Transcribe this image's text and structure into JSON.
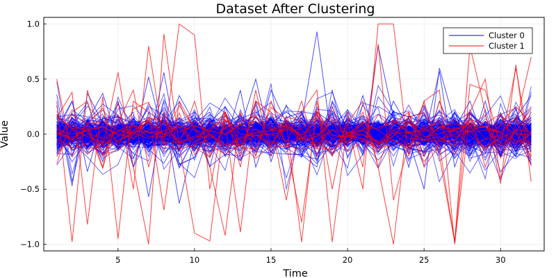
{
  "chart_data": {
    "type": "line",
    "title": "Dataset After Clustering",
    "xlabel": "Time",
    "ylabel": "Value",
    "xlim": [
      0.15,
      32.85
    ],
    "ylim": [
      -1.06,
      1.06
    ],
    "x_ticks": [
      5,
      10,
      15,
      20,
      25,
      30
    ],
    "y_ticks": [
      -1.0,
      -0.5,
      0.0,
      0.5,
      1.0
    ],
    "y_tick_labels": [
      "−1.0",
      "−0.5",
      "0.0",
      "0.5",
      "1.0"
    ],
    "grid": true,
    "legend_position": "top-right",
    "x": [
      1,
      2,
      3,
      4,
      5,
      6,
      7,
      8,
      9,
      10,
      11,
      12,
      13,
      14,
      15,
      16,
      17,
      18,
      19,
      20,
      21,
      22,
      23,
      24,
      25,
      26,
      27,
      28,
      29,
      30,
      31,
      32
    ],
    "series": [
      {
        "name": "Cluster 0",
        "color": "#0000ff",
        "lines": [
          [
            0.36,
            -0.43,
            0.12,
            0.37,
            -0.08,
            0.15,
            -0.1,
            0.56,
            -0.2,
            0.1,
            -0.05,
            0.12,
            0.05,
            0.5,
            -0.1,
            0.05,
            0.1,
            0.93,
            -0.1,
            0.2,
            0.05,
            -0.1,
            0.3,
            0.05,
            -0.05,
            0.57,
            -0.3,
            0.1,
            0.05,
            -0.2,
            0.1,
            -0.27
          ],
          [
            0.26,
            -0.47,
            0.37,
            0.1,
            0.05,
            0.2,
            -0.57,
            0.2,
            -0.63,
            -0.05,
            0.1,
            0.25,
            0.05,
            -0.1,
            0.4,
            0.1,
            -0.05,
            0.2,
            0.1,
            0.05,
            -0.15,
            0.8,
            0.15,
            -0.05,
            -0.5,
            0.6,
            0.1,
            0.2,
            0.05,
            0.1,
            0.15,
            0.35
          ],
          [
            0.05,
            0.3,
            -0.34,
            0.15,
            0.1,
            -0.1,
            0.52,
            -0.05,
            0.35,
            0.1,
            0.2,
            -0.1,
            0.4,
            -0.3,
            0.1,
            0.2,
            0.1,
            -0.25,
            0.3,
            0.05,
            -0.1,
            0.1,
            0.05,
            0.15,
            -0.2,
            0.1,
            0.05,
            0.3,
            -0.1,
            0.05,
            -0.2,
            0.1
          ],
          [
            -0.1,
            0.15,
            0.05,
            -0.25,
            0.3,
            -0.3,
            0.2,
            0.1,
            -0.15,
            0.2,
            -0.3,
            0.25,
            -0.1,
            0.3,
            -0.25,
            0.15,
            0.2,
            -0.2,
            0.25,
            -0.1,
            0.35,
            -0.1,
            0.2,
            -0.3,
            0.25,
            -0.1,
            0.2,
            -0.15,
            0.3,
            -0.2,
            0.15,
            0.05
          ]
        ]
      },
      {
        "name": "Cluster 1",
        "color": "#ff0000",
        "lines": [
          [
            0.5,
            -0.2,
            0.1,
            -0.3,
            0.3,
            -0.5,
            0.8,
            -0.1,
            1.0,
            0.9,
            -0.5,
            0.2,
            -0.3,
            0.4,
            -0.2,
            0.1,
            -0.98,
            0.3,
            -0.5,
            0.2,
            -0.3,
            0.82,
            -0.6,
            -0.1,
            0.3,
            0.4,
            -1.0,
            0.2,
            0.5,
            -0.4,
            0.1,
            0.7
          ],
          [
            0.3,
            -0.98,
            0.4,
            -0.1,
            0.56,
            -0.3,
            -1.0,
            0.91,
            -0.1,
            -0.9,
            -0.97,
            0.2,
            -0.2,
            0.3,
            0.1,
            -0.6,
            0.2,
            0.4,
            -0.98,
            0.1,
            -0.5,
            1.0,
            1.0,
            -0.2,
            0.3,
            -0.2,
            -0.98,
            0.8,
            0.2,
            -0.45,
            0.63,
            -0.43
          ],
          [
            0.15,
            0.38,
            -0.82,
            0.34,
            -0.95,
            0.3,
            0.2,
            -0.69,
            0.3,
            0.05,
            -0.3,
            -0.92,
            0.2,
            -0.2,
            0.3,
            -0.1,
            -0.8,
            0.2,
            -0.2,
            0.1,
            0.3,
            -0.3,
            -1.0,
            0.2,
            -0.3,
            -0.1,
            -0.98,
            0.45,
            0.4,
            -0.1,
            0.6,
            -0.2
          ],
          [
            -0.1,
            0.2,
            0.3,
            -0.2,
            0.1,
            0.4,
            -0.3,
            0.2,
            -0.1,
            0.3,
            -0.2,
            0.1,
            -0.89,
            0.3,
            0.2,
            -0.1,
            0.3,
            -0.2,
            0.25,
            -0.1,
            0.2,
            -0.3,
            0.1,
            0.2,
            -0.2,
            0.3,
            -0.1,
            0.2,
            -0.3,
            0.1,
            0.25,
            0.1
          ]
        ]
      }
    ]
  }
}
